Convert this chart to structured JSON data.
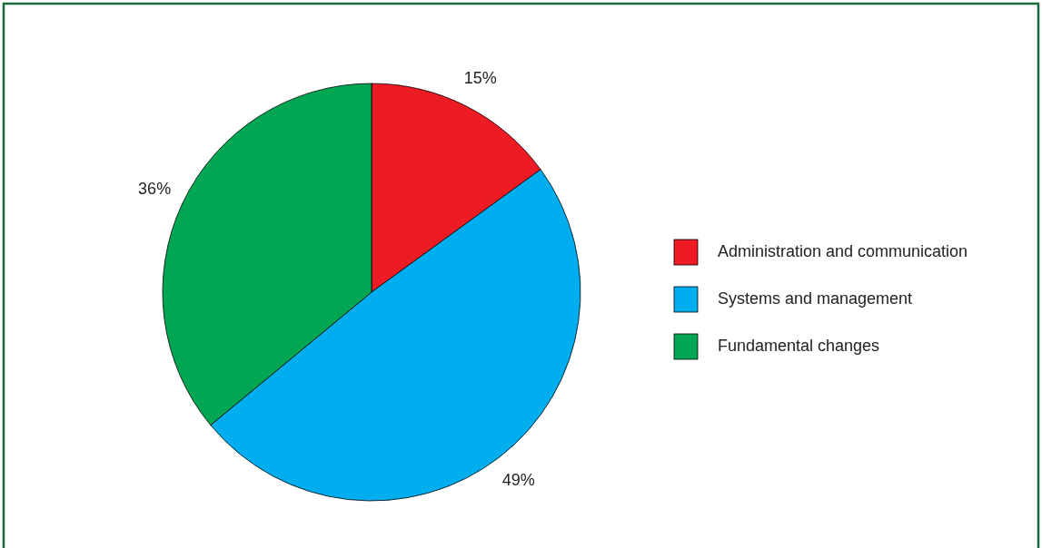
{
  "chart_data": {
    "type": "pie",
    "categories": [
      "Administration and communication",
      "Systems and management",
      "Fundamental changes"
    ],
    "values": [
      15,
      49,
      36
    ],
    "colors": [
      "#ed1c24",
      "#00aeef",
      "#00a651"
    ],
    "value_labels": [
      "15%",
      "49%",
      "36%"
    ],
    "legend": "right"
  }
}
